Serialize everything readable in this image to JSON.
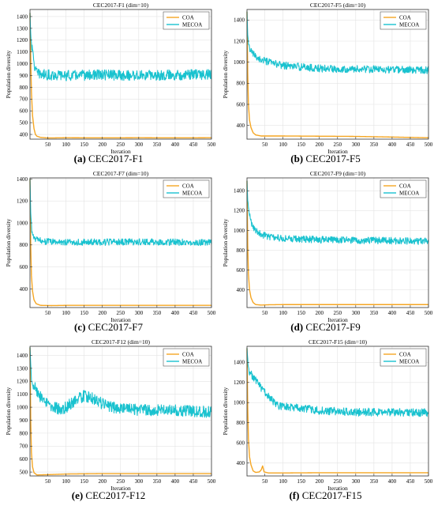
{
  "figure": {
    "panels": [
      {
        "caption_letter": "(a)",
        "caption_text": "CEC2017-F1"
      },
      {
        "caption_letter": "(b)",
        "caption_text": "CEC2017-F5"
      },
      {
        "caption_letter": "(c)",
        "caption_text": "CEC2017-F7"
      },
      {
        "caption_letter": "(d)",
        "caption_text": "CEC2017-F9"
      },
      {
        "caption_letter": "(e)",
        "caption_text": "CEC2017-F12"
      },
      {
        "caption_letter": "(f)",
        "caption_text": "CEC2017-F15"
      }
    ]
  },
  "colors": {
    "COA": "#F5A623",
    "MECOA": "#19C2CF"
  },
  "chart_data": [
    {
      "type": "line",
      "title": "CEC2017-F1 (dim=10)",
      "xlabel": "Iteration",
      "ylabel": "Population diversity",
      "xlim": [
        1,
        500
      ],
      "ylim": [
        360,
        1460
      ],
      "xticks": [
        50,
        100,
        150,
        200,
        250,
        300,
        350,
        400,
        450,
        500
      ],
      "yticks": [
        400,
        500,
        600,
        700,
        800,
        900,
        1000,
        1100,
        1200,
        1300,
        1400
      ],
      "legend": "top-right",
      "grid": true,
      "series": [
        {
          "name": "COA",
          "color_key": "COA",
          "x": [
            1,
            3,
            5,
            8,
            12,
            16,
            20,
            30,
            50,
            100,
            200,
            300,
            400,
            500
          ],
          "y": [
            1430,
            1050,
            760,
            560,
            450,
            400,
            385,
            375,
            370,
            372,
            371,
            372,
            371,
            372
          ]
        },
        {
          "name": "MECOA",
          "color_key": "MECOA",
          "x": [
            1,
            3,
            6,
            10,
            15,
            20,
            30,
            50,
            100,
            200,
            300,
            400,
            500
          ],
          "y": [
            1430,
            1260,
            1140,
            1060,
            960,
            920,
            910,
            905,
            900,
            905,
            900,
            905,
            910
          ],
          "noise": 45
        }
      ]
    },
    {
      "type": "line",
      "title": "CEC2017-F5 (dim=10)",
      "xlabel": "Iteration",
      "ylabel": "Population diversity",
      "xlim": [
        1,
        500
      ],
      "ylim": [
        270,
        1500
      ],
      "xticks": [
        50,
        100,
        150,
        200,
        250,
        300,
        350,
        400,
        450,
        500
      ],
      "yticks": [
        400,
        600,
        800,
        1000,
        1200,
        1400
      ],
      "legend": "top-right",
      "grid": true,
      "series": [
        {
          "name": "COA",
          "color_key": "COA",
          "x": [
            1,
            3,
            5,
            8,
            12,
            18,
            25,
            40,
            100,
            200,
            300,
            400,
            500
          ],
          "y": [
            1480,
            900,
            600,
            450,
            380,
            330,
            310,
            300,
            300,
            298,
            296,
            290,
            283
          ]
        },
        {
          "name": "MECOA",
          "color_key": "MECOA",
          "x": [
            1,
            3,
            6,
            10,
            20,
            40,
            70,
            100,
            200,
            300,
            400,
            500
          ],
          "y": [
            1480,
            1250,
            1160,
            1110,
            1070,
            1020,
            990,
            970,
            940,
            935,
            930,
            925
          ],
          "noise": 35
        }
      ]
    },
    {
      "type": "line",
      "title": "CEC2017-F7 (dim=10)",
      "xlabel": "Iteration",
      "ylabel": "Population diversity",
      "xlim": [
        1,
        500
      ],
      "ylim": [
        230,
        1410
      ],
      "xticks": [
        50,
        100,
        150,
        200,
        250,
        300,
        350,
        400,
        450,
        500
      ],
      "yticks": [
        400,
        600,
        800,
        1000,
        1200,
        1400
      ],
      "legend": "top-right",
      "grid": true,
      "series": [
        {
          "name": "COA",
          "color_key": "COA",
          "x": [
            1,
            3,
            5,
            8,
            12,
            18,
            30,
            60,
            100,
            200,
            300,
            400,
            500
          ],
          "y": [
            1400,
            800,
            520,
            380,
            300,
            265,
            250,
            248,
            250,
            250,
            250,
            250,
            250
          ]
        },
        {
          "name": "MECOA",
          "color_key": "MECOA",
          "x": [
            1,
            3,
            6,
            10,
            20,
            50,
            100,
            200,
            300,
            400,
            500
          ],
          "y": [
            1400,
            1100,
            930,
            870,
            845,
            830,
            825,
            825,
            828,
            825,
            822
          ],
          "noise": 30
        }
      ]
    },
    {
      "type": "line",
      "title": "CEC2017-F9 (dim=10)",
      "xlabel": "Iteration",
      "ylabel": "Population diversity",
      "xlim": [
        1,
        500
      ],
      "ylim": [
        220,
        1530
      ],
      "xticks": [
        50,
        100,
        150,
        200,
        250,
        300,
        350,
        400,
        450,
        500
      ],
      "yticks": [
        400,
        600,
        800,
        1000,
        1200,
        1400
      ],
      "legend": "top-right",
      "grid": true,
      "series": [
        {
          "name": "COA",
          "color_key": "COA",
          "x": [
            1,
            3,
            5,
            8,
            12,
            18,
            25,
            40,
            60,
            100,
            200,
            300,
            400,
            500
          ],
          "y": [
            1500,
            850,
            560,
            400,
            320,
            270,
            250,
            245,
            248,
            250,
            250,
            250,
            250,
            250
          ]
        },
        {
          "name": "MECOA",
          "color_key": "MECOA",
          "x": [
            1,
            3,
            6,
            10,
            15,
            25,
            40,
            70,
            100,
            200,
            300,
            400,
            500
          ],
          "y": [
            1500,
            1300,
            1200,
            1120,
            1060,
            1000,
            960,
            930,
            920,
            905,
            900,
            895,
            890
          ],
          "noise": 35
        }
      ]
    },
    {
      "type": "line",
      "title": "CEC2017-F12 (dim=10)",
      "xlabel": "Iteration",
      "ylabel": "Population diversity",
      "xlim": [
        1,
        500
      ],
      "ylim": [
        470,
        1470
      ],
      "xticks": [
        50,
        100,
        150,
        200,
        250,
        300,
        350,
        400,
        450,
        500
      ],
      "yticks": [
        500,
        600,
        700,
        800,
        900,
        1000,
        1100,
        1200,
        1300,
        1400
      ],
      "legend": "top-right",
      "grid": true,
      "series": [
        {
          "name": "COA",
          "color_key": "COA",
          "x": [
            1,
            3,
            5,
            8,
            12,
            20,
            50,
            100,
            200,
            300,
            400,
            500
          ],
          "y": [
            1460,
            900,
            650,
            540,
            495,
            478,
            480,
            485,
            488,
            488,
            488,
            488
          ]
        },
        {
          "name": "MECOA",
          "color_key": "MECOA",
          "x": [
            1,
            5,
            10,
            20,
            35,
            60,
            90,
            120,
            150,
            180,
            210,
            250,
            300,
            400,
            500
          ],
          "y": [
            1460,
            1230,
            1180,
            1130,
            1050,
            1010,
            980,
            1040,
            1090,
            1060,
            1010,
            990,
            980,
            975,
            965
          ],
          "noise": 45
        }
      ]
    },
    {
      "type": "line",
      "title": "CEC2017-F15 (dim=10)",
      "xlabel": "Iteration",
      "ylabel": "Population diversity",
      "xlim": [
        1,
        500
      ],
      "ylim": [
        270,
        1560
      ],
      "xticks": [
        50,
        100,
        150,
        200,
        250,
        300,
        350,
        400,
        450,
        500
      ],
      "yticks": [
        400,
        600,
        800,
        1000,
        1200,
        1400
      ],
      "legend": "top-right",
      "grid": true,
      "series": [
        {
          "name": "COA",
          "color_key": "COA",
          "x": [
            1,
            3,
            5,
            8,
            12,
            18,
            25,
            35,
            40,
            44,
            48,
            60,
            100,
            200,
            300,
            400,
            500
          ],
          "y": [
            1540,
            950,
            640,
            460,
            380,
            320,
            305,
            310,
            330,
            370,
            310,
            300,
            300,
            302,
            302,
            302,
            302
          ]
        },
        {
          "name": "MECOA",
          "color_key": "MECOA",
          "x": [
            1,
            5,
            10,
            20,
            30,
            45,
            60,
            80,
            100,
            150,
            200,
            300,
            400,
            500
          ],
          "y": [
            1540,
            1340,
            1290,
            1250,
            1200,
            1120,
            1060,
            980,
            960,
            950,
            920,
            905,
            905,
            900
          ],
          "noise": 40
        }
      ]
    }
  ]
}
